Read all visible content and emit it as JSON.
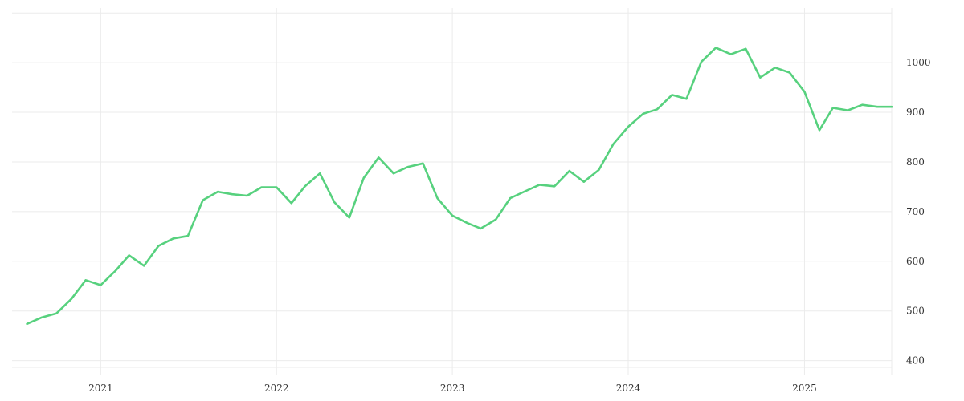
{
  "chart_data": {
    "type": "line",
    "title": "",
    "xlabel": "",
    "ylabel": "",
    "grid": true,
    "y_axis_side": "right",
    "ylim": [
      380,
      1110
    ],
    "xlim": [
      "2020-07-01",
      "2025-07-01"
    ],
    "x_ticks": [
      {
        "date": "2021-01-01",
        "label": "2021"
      },
      {
        "date": "2022-01-01",
        "label": "2022"
      },
      {
        "date": "2023-01-01",
        "label": "2023"
      },
      {
        "date": "2024-01-01",
        "label": "2024"
      },
      {
        "date": "2025-01-01",
        "label": "2025"
      }
    ],
    "y_ticks": [
      400,
      500,
      600,
      700,
      800,
      900,
      1000
    ],
    "y_tick_labels": [
      "400",
      "500",
      "600",
      "700",
      "800",
      "900",
      "1000"
    ],
    "series": [
      {
        "color": "#57d17e",
        "points": [
          [
            "2020-08-01",
            474
          ],
          [
            "2020-09-01",
            487
          ],
          [
            "2020-10-01",
            495
          ],
          [
            "2020-11-01",
            524
          ],
          [
            "2020-12-01",
            562
          ],
          [
            "2021-01-01",
            552
          ],
          [
            "2021-02-01",
            581
          ],
          [
            "2021-03-01",
            612
          ],
          [
            "2021-04-01",
            591
          ],
          [
            "2021-05-01",
            631
          ],
          [
            "2021-06-01",
            646
          ],
          [
            "2021-07-01",
            651
          ],
          [
            "2021-08-01",
            723
          ],
          [
            "2021-09-01",
            740
          ],
          [
            "2021-10-01",
            735
          ],
          [
            "2021-11-01",
            732
          ],
          [
            "2021-12-01",
            749
          ],
          [
            "2022-01-01",
            749
          ],
          [
            "2022-02-01",
            717
          ],
          [
            "2022-03-01",
            751
          ],
          [
            "2022-04-01",
            777
          ],
          [
            "2022-05-01",
            719
          ],
          [
            "2022-06-01",
            688
          ],
          [
            "2022-07-01",
            768
          ],
          [
            "2022-08-01",
            809
          ],
          [
            "2022-09-01",
            777
          ],
          [
            "2022-10-01",
            790
          ],
          [
            "2022-11-01",
            797
          ],
          [
            "2022-12-01",
            727
          ],
          [
            "2023-01-01",
            692
          ],
          [
            "2023-02-01",
            677
          ],
          [
            "2023-03-01",
            666
          ],
          [
            "2023-04-01",
            684
          ],
          [
            "2023-05-01",
            727
          ],
          [
            "2023-06-01",
            741
          ],
          [
            "2023-07-01",
            754
          ],
          [
            "2023-08-01",
            751
          ],
          [
            "2023-09-01",
            782
          ],
          [
            "2023-10-01",
            760
          ],
          [
            "2023-11-01",
            784
          ],
          [
            "2023-12-01",
            836
          ],
          [
            "2024-01-01",
            871
          ],
          [
            "2024-02-01",
            897
          ],
          [
            "2024-03-01",
            906
          ],
          [
            "2024-04-01",
            935
          ],
          [
            "2024-05-01",
            927
          ],
          [
            "2024-06-01",
            1002
          ],
          [
            "2024-07-01",
            1030
          ],
          [
            "2024-08-01",
            1017
          ],
          [
            "2024-09-01",
            1028
          ],
          [
            "2024-10-01",
            970
          ],
          [
            "2024-11-01",
            990
          ],
          [
            "2024-12-01",
            980
          ],
          [
            "2025-01-01",
            941
          ],
          [
            "2025-02-01",
            864
          ],
          [
            "2025-03-01",
            909
          ],
          [
            "2025-04-01",
            904
          ],
          [
            "2025-05-01",
            915
          ],
          [
            "2025-06-01",
            911
          ],
          [
            "2025-07-01",
            911
          ]
        ]
      }
    ]
  }
}
